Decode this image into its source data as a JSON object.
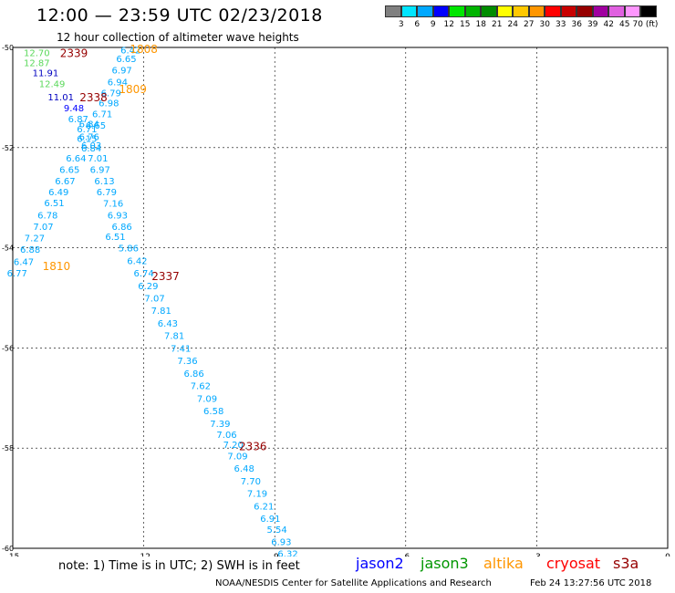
{
  "title": "12:00  — 23:59  UTC 02/23/2018",
  "subtitle": "12 hour collection of altimeter wave heights",
  "colorbar": {
    "labels": [
      "3",
      "6",
      "9",
      "12",
      "15",
      "18",
      "21",
      "24",
      "27",
      "30",
      "33",
      "36",
      "39",
      "42",
      "45",
      "70 (ft)"
    ],
    "colors": [
      "#808080",
      "#00e5ff",
      "#00a8ff",
      "#0000ff",
      "#00e600",
      "#00b400",
      "#008c00",
      "#ffff00",
      "#ffc800",
      "#ff9600",
      "#ff0000",
      "#c80000",
      "#960000",
      "#a000a0",
      "#e060e0",
      "#ff96ff",
      "#000000"
    ]
  },
  "chart_data": {
    "type": "scatter",
    "title": "12:00  — 23:59  UTC 02/23/2018",
    "subtitle": "12 hour collection of altimeter wave heights",
    "xlim": [
      -15,
      0
    ],
    "ylim": [
      -60,
      -50
    ],
    "x_ticks": [
      "-15",
      "-12",
      "-9",
      "-6",
      "-3",
      "0"
    ],
    "y_ticks": [
      "-50",
      "-52",
      "-54",
      "-56",
      "-58",
      "-60"
    ],
    "grid": true,
    "wave_heights": [
      {
        "v": "6.42",
        "lon": -12.3,
        "lat": -50.05,
        "c": "#00a8ff"
      },
      {
        "v": "6.65",
        "lon": -12.4,
        "lat": -50.22,
        "c": "#00a8ff"
      },
      {
        "v": "6.97",
        "lon": -12.5,
        "lat": -50.45,
        "c": "#00a8ff"
      },
      {
        "v": "6.94",
        "lon": -12.6,
        "lat": -50.68,
        "c": "#00a8ff"
      },
      {
        "v": "6.79",
        "lon": -12.75,
        "lat": -50.9,
        "c": "#00a8ff"
      },
      {
        "v": "6.98",
        "lon": -12.8,
        "lat": -51.1,
        "c": "#00a8ff"
      },
      {
        "v": "6.71",
        "lon": -12.95,
        "lat": -51.32,
        "c": "#00a8ff"
      },
      {
        "v": "6.65",
        "lon": -13.1,
        "lat": -51.55,
        "c": "#00a8ff"
      },
      {
        "v": "6.76",
        "lon": -13.25,
        "lat": -51.78,
        "c": "#00a8ff"
      },
      {
        "v": "6.84",
        "lon": -13.2,
        "lat": -52.0,
        "c": "#00a8ff"
      },
      {
        "v": "7.01",
        "lon": -13.05,
        "lat": -52.2,
        "c": "#00a8ff"
      },
      {
        "v": "6.97",
        "lon": -13.0,
        "lat": -52.43,
        "c": "#00a8ff"
      },
      {
        "v": "6.13",
        "lon": -12.9,
        "lat": -52.66,
        "c": "#00a8ff"
      },
      {
        "v": "6.79",
        "lon": -12.85,
        "lat": -52.88,
        "c": "#00a8ff"
      },
      {
        "v": "7.16",
        "lon": -12.7,
        "lat": -53.11,
        "c": "#00a8ff"
      },
      {
        "v": "6.93",
        "lon": -12.6,
        "lat": -53.34,
        "c": "#00a8ff"
      },
      {
        "v": "6.86",
        "lon": -12.5,
        "lat": -53.57,
        "c": "#00a8ff"
      },
      {
        "v": "6.51",
        "lon": -12.65,
        "lat": -53.77,
        "c": "#00a8ff"
      },
      {
        "v": "5.86",
        "lon": -12.35,
        "lat": -54.0,
        "c": "#00a8ff"
      },
      {
        "v": "6.42",
        "lon": -12.15,
        "lat": -54.25,
        "c": "#00a8ff"
      },
      {
        "v": "6.74",
        "lon": -12.0,
        "lat": -54.5,
        "c": "#00a8ff"
      },
      {
        "v": "6.29",
        "lon": -11.9,
        "lat": -54.75,
        "c": "#00a8ff"
      },
      {
        "v": "7.07",
        "lon": -11.75,
        "lat": -55.0,
        "c": "#00a8ff"
      },
      {
        "v": "7.81",
        "lon": -11.6,
        "lat": -55.25,
        "c": "#00a8ff"
      },
      {
        "v": "6.43",
        "lon": -11.45,
        "lat": -55.5,
        "c": "#00a8ff"
      },
      {
        "v": "7.81",
        "lon": -11.3,
        "lat": -55.75,
        "c": "#00a8ff"
      },
      {
        "v": "7.41",
        "lon": -11.15,
        "lat": -56.0,
        "c": "#00a8ff"
      },
      {
        "v": "7.36",
        "lon": -11.0,
        "lat": -56.25,
        "c": "#00a8ff"
      },
      {
        "v": "6.86",
        "lon": -10.85,
        "lat": -56.5,
        "c": "#00a8ff"
      },
      {
        "v": "7.62",
        "lon": -10.7,
        "lat": -56.75,
        "c": "#00a8ff"
      },
      {
        "v": "7.09",
        "lon": -10.55,
        "lat": -57.0,
        "c": "#00a8ff"
      },
      {
        "v": "6.58",
        "lon": -10.4,
        "lat": -57.25,
        "c": "#00a8ff"
      },
      {
        "v": "7.39",
        "lon": -10.25,
        "lat": -57.5,
        "c": "#00a8ff"
      },
      {
        "v": "7.06",
        "lon": -10.1,
        "lat": -57.72,
        "c": "#00a8ff"
      },
      {
        "v": "7.20",
        "lon": -9.95,
        "lat": -57.92,
        "c": "#00a8ff"
      },
      {
        "v": "7.09",
        "lon": -9.85,
        "lat": -58.15,
        "c": "#00a8ff"
      },
      {
        "v": "6.48",
        "lon": -9.7,
        "lat": -58.4,
        "c": "#00a8ff"
      },
      {
        "v": "7.70",
        "lon": -9.55,
        "lat": -58.65,
        "c": "#00a8ff"
      },
      {
        "v": "7.19",
        "lon": -9.4,
        "lat": -58.9,
        "c": "#00a8ff"
      },
      {
        "v": "6.21",
        "lon": -9.25,
        "lat": -59.15,
        "c": "#00a8ff"
      },
      {
        "v": "6.91",
        "lon": -9.1,
        "lat": -59.4,
        "c": "#00a8ff"
      },
      {
        "v": "5.54",
        "lon": -8.95,
        "lat": -59.62,
        "c": "#00a8ff"
      },
      {
        "v": "6.93",
        "lon": -8.85,
        "lat": -59.86,
        "c": "#00a8ff"
      },
      {
        "v": "6.32",
        "lon": -8.7,
        "lat": -60.1,
        "c": "#00a8ff"
      },
      {
        "v": "6.84",
        "lon": -13.25,
        "lat": -51.52,
        "c": "#00a8ff"
      },
      {
        "v": "6.87",
        "lon": -13.5,
        "lat": -51.42,
        "c": "#00a8ff"
      },
      {
        "v": "6.71",
        "lon": -13.3,
        "lat": -51.62,
        "c": "#00a8ff"
      },
      {
        "v": "6.15",
        "lon": -13.3,
        "lat": -51.81,
        "c": "#00a8ff"
      },
      {
        "v": "6.03",
        "lon": -13.2,
        "lat": -51.95,
        "c": "#00a8ff"
      },
      {
        "v": "6.64",
        "lon": -13.55,
        "lat": -52.2,
        "c": "#00a8ff"
      },
      {
        "v": "6.65",
        "lon": -13.7,
        "lat": -52.43,
        "c": "#00a8ff"
      },
      {
        "v": "6.67",
        "lon": -13.8,
        "lat": -52.66,
        "c": "#00a8ff"
      },
      {
        "v": "6.49",
        "lon": -13.95,
        "lat": -52.88,
        "c": "#00a8ff"
      },
      {
        "v": "6.51",
        "lon": -14.05,
        "lat": -53.1,
        "c": "#00a8ff"
      },
      {
        "v": "6.78",
        "lon": -14.2,
        "lat": -53.34,
        "c": "#00a8ff"
      },
      {
        "v": "7.07",
        "lon": -14.3,
        "lat": -53.57,
        "c": "#00a8ff"
      },
      {
        "v": "7.27",
        "lon": -14.5,
        "lat": -53.8,
        "c": "#00a8ff"
      },
      {
        "v": "6.88",
        "lon": -14.6,
        "lat": -54.03,
        "c": "#00a8ff"
      },
      {
        "v": "6.47",
        "lon": -14.75,
        "lat": -54.27,
        "c": "#00a8ff"
      },
      {
        "v": "6.77",
        "lon": -14.9,
        "lat": -54.5,
        "c": "#00a8ff"
      },
      {
        "v": "12.70",
        "lon": -14.45,
        "lat": -50.1,
        "c": "#5ad85a"
      },
      {
        "v": "12.87",
        "lon": -14.45,
        "lat": -50.3,
        "c": "#5ad85a"
      },
      {
        "v": "11.91",
        "lon": -14.25,
        "lat": -50.5,
        "c": "#0000c0"
      },
      {
        "v": "12.49",
        "lon": -14.1,
        "lat": -50.72,
        "c": "#5ad85a"
      },
      {
        "v": "11.01",
        "lon": -13.9,
        "lat": -50.98,
        "c": "#0000c0"
      },
      {
        "v": "9.48",
        "lon": -13.6,
        "lat": -51.2,
        "c": "#0000ff"
      }
    ],
    "time_labels": [
      {
        "t": "2339",
        "lon": -13.6,
        "lat": -50.1,
        "c": "#960000"
      },
      {
        "t": "1808",
        "lon": -12.0,
        "lat": -50.02,
        "c": "#ff9600"
      },
      {
        "t": "2338",
        "lon": -13.15,
        "lat": -50.98,
        "c": "#960000"
      },
      {
        "t": "1809",
        "lon": -12.25,
        "lat": -50.82,
        "c": "#ff9600"
      },
      {
        "t": "1810",
        "lon": -14.0,
        "lat": -54.35,
        "c": "#ff9600"
      },
      {
        "t": "2337",
        "lon": -11.5,
        "lat": -54.55,
        "c": "#960000"
      },
      {
        "t": "2336",
        "lon": -9.5,
        "lat": -57.95,
        "c": "#960000"
      }
    ]
  },
  "note": "note:  1) Time is in UTC; 2) SWH is in feet",
  "legend": [
    {
      "name": "jason2",
      "color": "#0000ff"
    },
    {
      "name": "jason3",
      "color": "#009600"
    },
    {
      "name": "altika",
      "color": "#ff9600"
    },
    {
      "name": "cryosat",
      "color": "#ff0000"
    },
    {
      "name": "s3a",
      "color": "#960000"
    }
  ],
  "footer": "NOAA/NESDIS Center for Satellite Applications and Research",
  "footer_right": "Feb 24 13:27:56 UTC 2018"
}
